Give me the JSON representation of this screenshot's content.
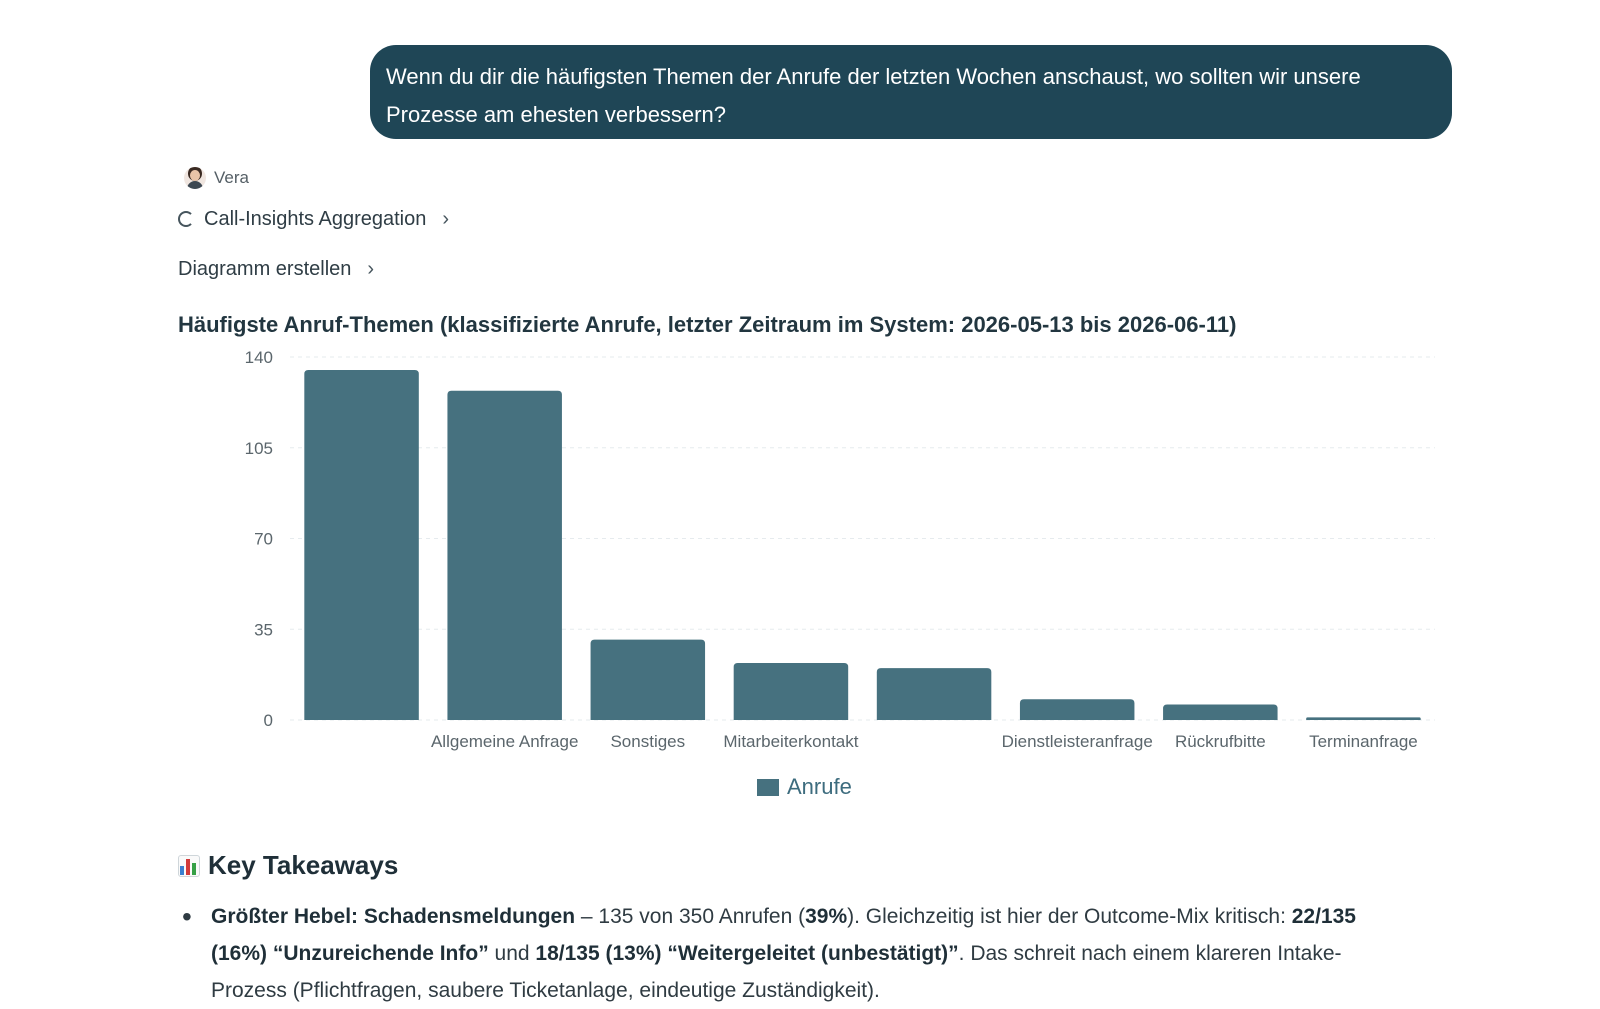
{
  "message": {
    "user_text": "Wenn du dir die häufigsten Themen der Anrufe der letzten Wochen anschaust, wo sollten wir unsere Prozesse am ehesten verbessern?"
  },
  "assistant": {
    "name": "Vera",
    "tool_step_label": "Call-Insights Aggregation",
    "diagram_step_label": "Diagramm erstellen"
  },
  "chart_data": {
    "type": "bar",
    "title": "Häufigste Anruf-Themen (klassifizierte Anrufe, letzter Zeitraum im System: 2026-05-13 bis 2026-06-11)",
    "categories": [
      "",
      "Allgemeine Anfrage",
      "Sonstiges",
      "Mitarbeiterkontakt",
      "",
      "Dienstleisteranfrage",
      "Rückrufbitte",
      "Terminanfrage"
    ],
    "series": [
      {
        "name": "Anrufe",
        "values": [
          135,
          127,
          31,
          22,
          20,
          8,
          6,
          1
        ]
      }
    ],
    "yticks": [
      "0",
      "35",
      "70",
      "105",
      "140"
    ],
    "ylim": [
      0,
      140
    ],
    "grid": true,
    "legend": "bottom",
    "bar_color": "#46717f"
  },
  "takeaways": {
    "icon": "bar-chart-icon",
    "title": "Key Takeaways",
    "item1": {
      "lead_bold": "Größter Hebel: Schadensmeldungen",
      "text1": " – 135 von 350 Anrufen (",
      "pct_bold": "39%",
      "text2": "). Gleichzeitig ist hier der Outcome-Mix kritisch: ",
      "stat1_bold": "22/135 (16%) “Unzureichende Info”",
      "text3": " und ",
      "stat2_bold": "18/135 (13%) “Weitergeleitet (unbestätigt)”",
      "text4": ". Das schreit nach einem klareren Intake-Prozess (Pflichtfragen, saubere Ticketanlage, eindeutige Zuständigkeit)."
    }
  }
}
